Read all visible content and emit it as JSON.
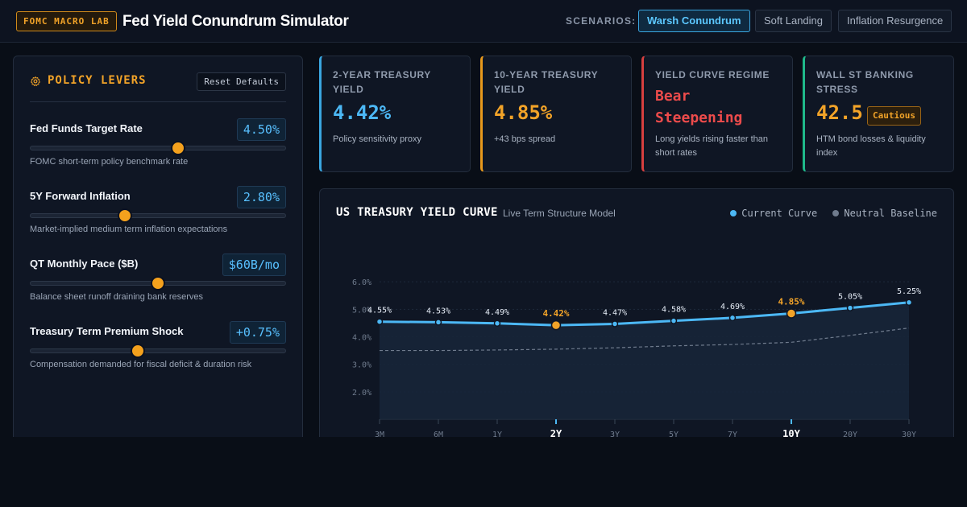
{
  "header": {
    "brand": "FOMC MACRO LAB",
    "title": "Fed Yield Conundrum Simulator",
    "scenarios_label": "SCENARIOS:",
    "scenarios": [
      {
        "label": "Warsh Conundrum",
        "active": true
      },
      {
        "label": "Soft Landing",
        "active": false
      },
      {
        "label": "Inflation Resurgence",
        "active": false
      }
    ]
  },
  "levers": {
    "title": "POLICY LEVERS",
    "reset_label": "Reset Defaults",
    "icon": "gear-icon",
    "items": [
      {
        "name": "Fed Funds Target Rate",
        "value": "4.50%",
        "desc": "FOMC short-term policy benchmark rate",
        "level": 0.58
      },
      {
        "name": "5Y Forward Inflation",
        "value": "2.80%",
        "desc": "Market-implied medium term inflation expectations",
        "level": 0.37
      },
      {
        "name": "QT Monthly Pace ($B)",
        "value": "$60B/mo",
        "desc": "Balance sheet runoff draining bank reserves",
        "level": 0.5
      },
      {
        "name": "Treasury Term Premium Shock",
        "value": "+0.75%",
        "desc": "Compensation demanded for fiscal deficit & duration risk",
        "level": 0.42
      }
    ]
  },
  "kpis": {
    "two_year": {
      "label": "2-YEAR TREASURY YIELD",
      "value": "4.42%",
      "sub": "Policy sensitivity proxy",
      "color": "#4cb8f5"
    },
    "ten_year": {
      "label": "10-YEAR TREASURY YIELD",
      "value": "4.85%",
      "sub": "+43 bps spread",
      "color": "#f2a328"
    },
    "regime": {
      "label": "YIELD CURVE REGIME",
      "value": "Bear Steepening",
      "sub": "Long yields rising faster than short rates",
      "color": "#ec4b4b"
    },
    "stress": {
      "label": "WALL ST BANKING STRESS",
      "value": "42.5",
      "badge": "Cautious",
      "sub": "HTM bond losses & liquidity index",
      "color": "#1fb98a"
    }
  },
  "chart": {
    "title": "US TREASURY YIELD CURVE",
    "subtitle": "Live Term Structure Model",
    "legend": [
      {
        "label": "Current Curve",
        "color": "#4cb8f5"
      },
      {
        "label": "Neutral Baseline",
        "color": "#6f7b8d"
      }
    ]
  },
  "chart_data": {
    "type": "line",
    "categories": [
      "3M",
      "6M",
      "1Y",
      "2Y",
      "3Y",
      "5Y",
      "7Y",
      "10Y",
      "20Y",
      "30Y"
    ],
    "highlight": [
      "2Y",
      "10Y"
    ],
    "series": [
      {
        "name": "Current Curve",
        "values": [
          4.55,
          4.53,
          4.49,
          4.42,
          4.47,
          4.58,
          4.69,
          4.85,
          5.05,
          5.25
        ],
        "labels": [
          "4.55%",
          "4.53%",
          "4.49%",
          "4.42%",
          "4.47%",
          "4.58%",
          "4.69%",
          "4.85%",
          "5.05%",
          "5.25%"
        ]
      },
      {
        "name": "Neutral Baseline",
        "values": [
          3.5,
          3.5,
          3.52,
          3.55,
          3.6,
          3.67,
          3.72,
          3.8,
          4.05,
          4.32
        ]
      }
    ],
    "yticks": [
      "2.0%",
      "3.0%",
      "4.0%",
      "5.0%",
      "6.0%"
    ],
    "ytick_values": [
      2,
      3,
      4,
      5,
      6
    ],
    "ylim": [
      1,
      7
    ],
    "grid": true
  }
}
